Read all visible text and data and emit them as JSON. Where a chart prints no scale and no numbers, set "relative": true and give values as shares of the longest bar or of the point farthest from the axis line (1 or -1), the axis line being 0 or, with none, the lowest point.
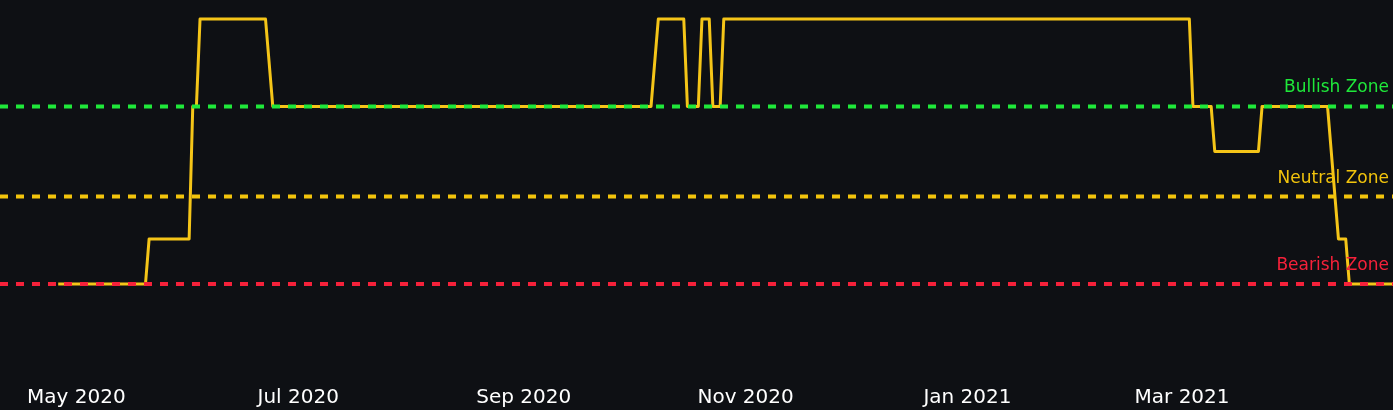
{
  "chart_data": {
    "type": "line",
    "relative": true,
    "grid": false,
    "marker": "none",
    "line_style": "solid",
    "xlim": [
      "2020-04-10",
      "2021-04-28"
    ],
    "xticks": [
      {
        "value": "2020-05-01",
        "label": "May 2020"
      },
      {
        "value": "2020-07-01",
        "label": "Jul 2020"
      },
      {
        "value": "2020-09-01",
        "label": "Sep 2020"
      },
      {
        "value": "2020-11-01",
        "label": "Nov 2020"
      },
      {
        "value": "2021-01-01",
        "label": "Jan 2021"
      },
      {
        "value": "2021-03-01",
        "label": "Mar 2021"
      }
    ],
    "series": [
      {
        "color": "#f5c518",
        "x": [
          "2020-04-26",
          "2020-05-20",
          "2020-05-21",
          "2020-06-01",
          "2020-06-02",
          "2020-06-03",
          "2020-06-04",
          "2020-06-22",
          "2020-06-24",
          "2020-10-06",
          "2020-10-08",
          "2020-10-15",
          "2020-10-16",
          "2020-10-19",
          "2020-10-20",
          "2020-10-22",
          "2020-10-23",
          "2020-10-25",
          "2020-10-26",
          "2021-03-03",
          "2021-03-04",
          "2021-03-09",
          "2021-03-10",
          "2021-03-22",
          "2021-03-23",
          "2021-04-10",
          "2021-04-13",
          "2021-04-15",
          "2021-04-16",
          "2021-04-28"
        ],
        "values": [
          0,
          0,
          0.17,
          0.17,
          0.67,
          0.67,
          1,
          1,
          0.67,
          0.67,
          1,
          1,
          0.67,
          0.67,
          1,
          1,
          0.67,
          0.67,
          1,
          1,
          0.67,
          0.67,
          0.5,
          0.5,
          0.67,
          0.67,
          0.17,
          0.17,
          0,
          0
        ]
      }
    ],
    "ref_lines": [
      {
        "axis": "y",
        "value": 0.67,
        "label": "Bullish Zone",
        "color": "#1fe83a",
        "line_style": "dashed"
      },
      {
        "axis": "y",
        "value": 0.33,
        "label": "Neutral Zone",
        "color": "#f2c40c",
        "line_style": "dashed"
      },
      {
        "axis": "y",
        "value": 0,
        "label": "Bearish Zone",
        "color": "#f5213a",
        "line_style": "dashed"
      }
    ]
  }
}
